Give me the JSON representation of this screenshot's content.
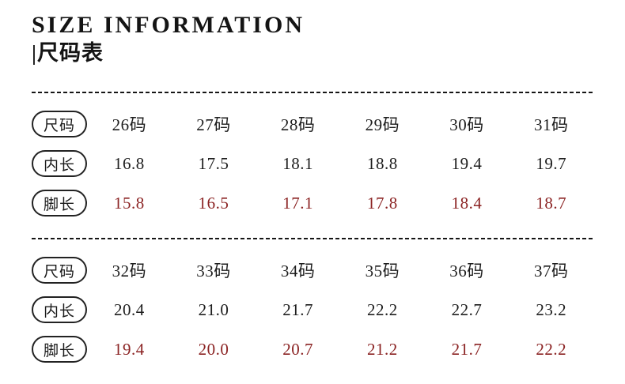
{
  "colors": {
    "ink": "#1a1a1a",
    "value_red": "#8b2323",
    "divider": "#161616"
  },
  "header": {
    "title": "SIZE INFORMATION",
    "subtitle": "|尺码表"
  },
  "chart_data": [
    {
      "type": "table",
      "rows": [
        {
          "label": "尺码",
          "values": [
            "26码",
            "27码",
            "28码",
            "29码",
            "30码",
            "31码"
          ]
        },
        {
          "label": "内长",
          "values": [
            "16.8",
            "17.5",
            "18.1",
            "18.8",
            "19.4",
            "19.7"
          ]
        },
        {
          "label": "脚长",
          "values": [
            "15.8",
            "16.5",
            "17.1",
            "17.8",
            "18.4",
            "18.7"
          ]
        }
      ]
    },
    {
      "type": "table",
      "rows": [
        {
          "label": "尺码",
          "values": [
            "32码",
            "33码",
            "34码",
            "35码",
            "36码",
            "37码"
          ]
        },
        {
          "label": "内长",
          "values": [
            "20.4",
            "21.0",
            "21.7",
            "22.2",
            "22.7",
            "23.2"
          ]
        },
        {
          "label": "脚长",
          "values": [
            "19.4",
            "20.0",
            "20.7",
            "21.2",
            "21.7",
            "22.2"
          ]
        }
      ]
    }
  ]
}
